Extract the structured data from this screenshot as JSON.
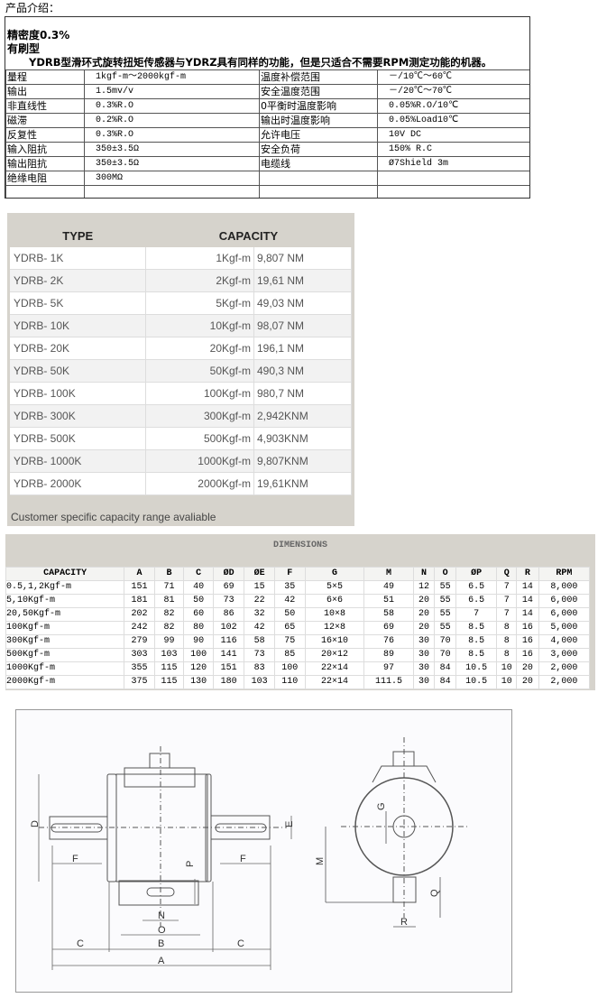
{
  "intro_title": "产品介绍：",
  "spec": {
    "headline1": "精密度0.3%",
    "headline2": "有刷型",
    "description": "YDRB型滑环式旋转扭矩传感器与YDRZ具有同样的功能，但是只适合不需要RPM测定功能的机器。",
    "rows": [
      [
        "量程",
        "1kgf-m～2000kgf-m",
        "温度补偿范围",
        "－/10℃～60℃"
      ],
      [
        "输出",
        "1.5mv/v",
        "安全温度范围",
        "－/20℃～70℃"
      ],
      [
        "非直线性",
        "0.3%R.O",
        "0平衡时温度影响",
        "0.05%R.O/10℃"
      ],
      [
        "磁滞",
        "0.2%R.O",
        "输出时温度影响",
        "0.05%Load10℃"
      ],
      [
        "反复性",
        "0.3%R.O",
        "允许电压",
        "10V DC"
      ],
      [
        "输入阻抗",
        "350±3.5Ω",
        "安全负荷",
        "150% R.C"
      ],
      [
        "输出阻抗",
        "350±3.5Ω",
        "电缆线",
        "Ø7Shield 3m"
      ],
      [
        "绝缘电阻",
        "300MΩ",
        "",
        ""
      ],
      [
        "",
        "",
        "",
        ""
      ]
    ]
  },
  "capacity": {
    "headers": [
      "TYPE",
      "CAPACITY"
    ],
    "rows": [
      [
        "YDRB- 1K",
        "1Kgf-m",
        "9,807 NM"
      ],
      [
        "YDRB- 2K",
        "2Kgf-m",
        "19,61 NM"
      ],
      [
        "YDRB- 5K",
        "5Kgf-m",
        "49,03 NM"
      ],
      [
        "YDRB- 10K",
        "10Kgf-m",
        "98,07 NM"
      ],
      [
        "YDRB- 20K",
        "20Kgf-m",
        "196,1 NM"
      ],
      [
        "YDRB- 50K",
        "50Kgf-m",
        "490,3 NM"
      ],
      [
        "YDRB- 100K",
        "100Kgf-m",
        "980,7 NM"
      ],
      [
        "YDRB- 300K",
        "300Kgf-m",
        "2,942KNM"
      ],
      [
        "YDRB- 500K",
        "500Kgf-m",
        "4,903KNM"
      ],
      [
        "YDRB- 1000K",
        "1000Kgf-m",
        "9,807KNM"
      ],
      [
        "YDRB- 2000K",
        "2000Kgf-m",
        "19,61KNM"
      ]
    ],
    "note": "Customer specific capacity range avaliable"
  },
  "dimensions": {
    "title": "DIMENSIONS",
    "headers": [
      "CAPACITY",
      "A",
      "B",
      "C",
      "ØD",
      "ØE",
      "F",
      "G",
      "M",
      "N",
      "O",
      "ØP",
      "Q",
      "R",
      "RPM"
    ],
    "rows": [
      [
        "0.5,1,2Kgf-m",
        "151",
        "71",
        "40",
        "69",
        "15",
        "35",
        "5×5",
        "49",
        "12",
        "55",
        "6.5",
        "7",
        "14",
        "8,000"
      ],
      [
        "5,10Kgf-m",
        "181",
        "81",
        "50",
        "73",
        "22",
        "42",
        "6×6",
        "51",
        "20",
        "55",
        "6.5",
        "7",
        "14",
        "6,000"
      ],
      [
        "20,50Kgf-m",
        "202",
        "82",
        "60",
        "86",
        "32",
        "50",
        "10×8",
        "58",
        "20",
        "55",
        "7",
        "7",
        "14",
        "6,000"
      ],
      [
        "100Kgf-m",
        "242",
        "82",
        "80",
        "102",
        "42",
        "65",
        "12×8",
        "69",
        "20",
        "55",
        "8.5",
        "8",
        "16",
        "5,000"
      ],
      [
        "300Kgf-m",
        "279",
        "99",
        "90",
        "116",
        "58",
        "75",
        "16×10",
        "76",
        "30",
        "70",
        "8.5",
        "8",
        "16",
        "4,000"
      ],
      [
        "500Kgf-m",
        "303",
        "103",
        "100",
        "141",
        "73",
        "85",
        "20×12",
        "89",
        "30",
        "70",
        "8.5",
        "8",
        "16",
        "3,000"
      ],
      [
        "1000Kgf-m",
        "355",
        "115",
        "120",
        "151",
        "83",
        "100",
        "22×14",
        "97",
        "30",
        "84",
        "10.5",
        "10",
        "20",
        "2,000"
      ],
      [
        "2000Kgf-m",
        "375",
        "115",
        "130",
        "180",
        "103",
        "110",
        "22×14",
        "111.5",
        "30",
        "84",
        "10.5",
        "10",
        "20",
        "2,000"
      ]
    ]
  },
  "drawing_labels": {
    "A": "A",
    "B": "B",
    "C": "C",
    "D": "D",
    "E": "E",
    "F": "F",
    "G": "G",
    "M": "M",
    "N": "N",
    "O": "O",
    "P": "P",
    "Q": "Q",
    "R": "R"
  }
}
